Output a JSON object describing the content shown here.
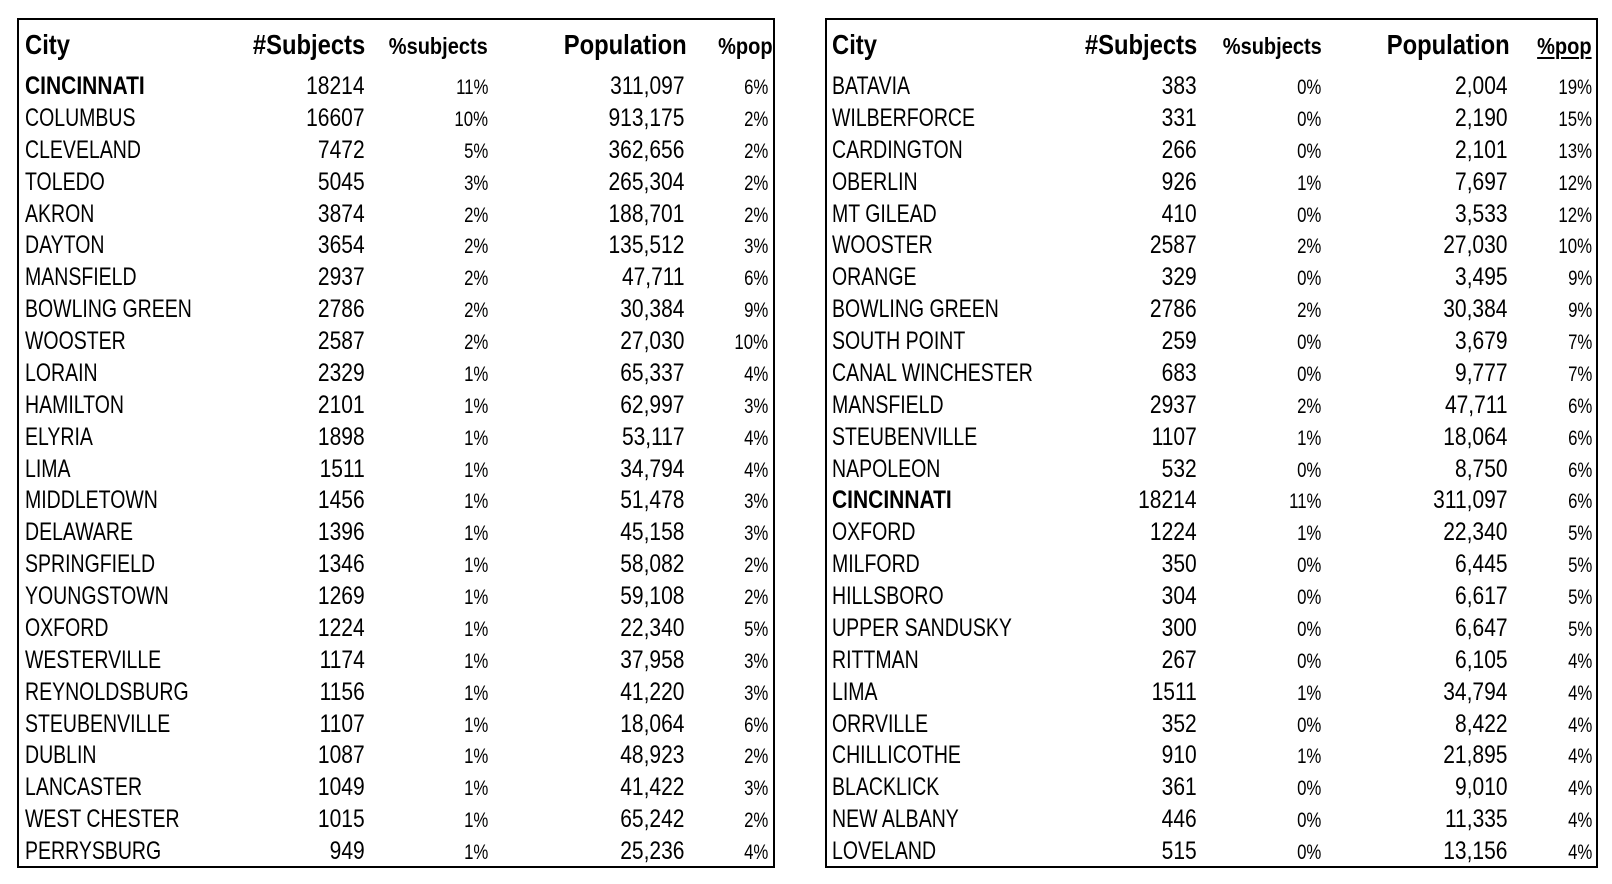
{
  "page": {
    "background": "#ffffff",
    "text_color": "#000000",
    "table_border_color": "#000000"
  },
  "tables": [
    {
      "name": "cities-by-subjects",
      "headers": {
        "city": "City",
        "subjects": "#Subjects",
        "pct_subjects": "%subjects",
        "population": "Population",
        "pct_pop": "%pop",
        "pct_pop_underlined": false
      },
      "rows": [
        {
          "city": "CINCINNATI",
          "subjects": "18214",
          "pct_subjects": "11%",
          "population": "311,097",
          "pct_pop": "6%",
          "bold": true
        },
        {
          "city": "COLUMBUS",
          "subjects": "16607",
          "pct_subjects": "10%",
          "population": "913,175",
          "pct_pop": "2%",
          "bold": false
        },
        {
          "city": "CLEVELAND",
          "subjects": "7472",
          "pct_subjects": "5%",
          "population": "362,656",
          "pct_pop": "2%",
          "bold": false
        },
        {
          "city": "TOLEDO",
          "subjects": "5045",
          "pct_subjects": "3%",
          "population": "265,304",
          "pct_pop": "2%",
          "bold": false
        },
        {
          "city": "AKRON",
          "subjects": "3874",
          "pct_subjects": "2%",
          "population": "188,701",
          "pct_pop": "2%",
          "bold": false
        },
        {
          "city": "DAYTON",
          "subjects": "3654",
          "pct_subjects": "2%",
          "population": "135,512",
          "pct_pop": "3%",
          "bold": false
        },
        {
          "city": "MANSFIELD",
          "subjects": "2937",
          "pct_subjects": "2%",
          "population": "47,711",
          "pct_pop": "6%",
          "bold": false
        },
        {
          "city": "BOWLING GREEN",
          "subjects": "2786",
          "pct_subjects": "2%",
          "population": "30,384",
          "pct_pop": "9%",
          "bold": false
        },
        {
          "city": "WOOSTER",
          "subjects": "2587",
          "pct_subjects": "2%",
          "population": "27,030",
          "pct_pop": "10%",
          "bold": false
        },
        {
          "city": "LORAIN",
          "subjects": "2329",
          "pct_subjects": "1%",
          "population": "65,337",
          "pct_pop": "4%",
          "bold": false
        },
        {
          "city": "HAMILTON",
          "subjects": "2101",
          "pct_subjects": "1%",
          "population": "62,997",
          "pct_pop": "3%",
          "bold": false
        },
        {
          "city": "ELYRIA",
          "subjects": "1898",
          "pct_subjects": "1%",
          "population": "53,117",
          "pct_pop": "4%",
          "bold": false
        },
        {
          "city": "LIMA",
          "subjects": "1511",
          "pct_subjects": "1%",
          "population": "34,794",
          "pct_pop": "4%",
          "bold": false
        },
        {
          "city": "MIDDLETOWN",
          "subjects": "1456",
          "pct_subjects": "1%",
          "population": "51,478",
          "pct_pop": "3%",
          "bold": false
        },
        {
          "city": "DELAWARE",
          "subjects": "1396",
          "pct_subjects": "1%",
          "population": "45,158",
          "pct_pop": "3%",
          "bold": false
        },
        {
          "city": "SPRINGFIELD",
          "subjects": "1346",
          "pct_subjects": "1%",
          "population": "58,082",
          "pct_pop": "2%",
          "bold": false
        },
        {
          "city": "YOUNGSTOWN",
          "subjects": "1269",
          "pct_subjects": "1%",
          "population": "59,108",
          "pct_pop": "2%",
          "bold": false
        },
        {
          "city": "OXFORD",
          "subjects": "1224",
          "pct_subjects": "1%",
          "population": "22,340",
          "pct_pop": "5%",
          "bold": false
        },
        {
          "city": "WESTERVILLE",
          "subjects": "1174",
          "pct_subjects": "1%",
          "population": "37,958",
          "pct_pop": "3%",
          "bold": false
        },
        {
          "city": "REYNOLDSBURG",
          "subjects": "1156",
          "pct_subjects": "1%",
          "population": "41,220",
          "pct_pop": "3%",
          "bold": false
        },
        {
          "city": "STEUBENVILLE",
          "subjects": "1107",
          "pct_subjects": "1%",
          "population": "18,064",
          "pct_pop": "6%",
          "bold": false
        },
        {
          "city": "DUBLIN",
          "subjects": "1087",
          "pct_subjects": "1%",
          "population": "48,923",
          "pct_pop": "2%",
          "bold": false
        },
        {
          "city": "LANCASTER",
          "subjects": "1049",
          "pct_subjects": "1%",
          "population": "41,422",
          "pct_pop": "3%",
          "bold": false
        },
        {
          "city": "WEST CHESTER",
          "subjects": "1015",
          "pct_subjects": "1%",
          "population": "65,242",
          "pct_pop": "2%",
          "bold": false
        },
        {
          "city": "PERRYSBURG",
          "subjects": "949",
          "pct_subjects": "1%",
          "population": "25,236",
          "pct_pop": "4%",
          "bold": false
        }
      ]
    },
    {
      "name": "cities-by-pct-pop",
      "headers": {
        "city": "City",
        "subjects": "#Subjects",
        "pct_subjects": "%subjects",
        "population": "Population",
        "pct_pop": "%pop",
        "pct_pop_underlined": true
      },
      "rows": [
        {
          "city": "BATAVIA",
          "subjects": "383",
          "pct_subjects": "0%",
          "population": "2,004",
          "pct_pop": "19%",
          "bold": false
        },
        {
          "city": "WILBERFORCE",
          "subjects": "331",
          "pct_subjects": "0%",
          "population": "2,190",
          "pct_pop": "15%",
          "bold": false
        },
        {
          "city": "CARDINGTON",
          "subjects": "266",
          "pct_subjects": "0%",
          "population": "2,101",
          "pct_pop": "13%",
          "bold": false
        },
        {
          "city": "OBERLIN",
          "subjects": "926",
          "pct_subjects": "1%",
          "population": "7,697",
          "pct_pop": "12%",
          "bold": false
        },
        {
          "city": "MT GILEAD",
          "subjects": "410",
          "pct_subjects": "0%",
          "population": "3,533",
          "pct_pop": "12%",
          "bold": false
        },
        {
          "city": "WOOSTER",
          "subjects": "2587",
          "pct_subjects": "2%",
          "population": "27,030",
          "pct_pop": "10%",
          "bold": false
        },
        {
          "city": "ORANGE",
          "subjects": "329",
          "pct_subjects": "0%",
          "population": "3,495",
          "pct_pop": "9%",
          "bold": false
        },
        {
          "city": "BOWLING GREEN",
          "subjects": "2786",
          "pct_subjects": "2%",
          "population": "30,384",
          "pct_pop": "9%",
          "bold": false
        },
        {
          "city": "SOUTH POINT",
          "subjects": "259",
          "pct_subjects": "0%",
          "population": "3,679",
          "pct_pop": "7%",
          "bold": false
        },
        {
          "city": "CANAL WINCHESTER",
          "subjects": "683",
          "pct_subjects": "0%",
          "population": "9,777",
          "pct_pop": "7%",
          "bold": false
        },
        {
          "city": "MANSFIELD",
          "subjects": "2937",
          "pct_subjects": "2%",
          "population": "47,711",
          "pct_pop": "6%",
          "bold": false
        },
        {
          "city": "STEUBENVILLE",
          "subjects": "1107",
          "pct_subjects": "1%",
          "population": "18,064",
          "pct_pop": "6%",
          "bold": false
        },
        {
          "city": "NAPOLEON",
          "subjects": "532",
          "pct_subjects": "0%",
          "population": "8,750",
          "pct_pop": "6%",
          "bold": false
        },
        {
          "city": "CINCINNATI",
          "subjects": "18214",
          "pct_subjects": "11%",
          "population": "311,097",
          "pct_pop": "6%",
          "bold": true
        },
        {
          "city": "OXFORD",
          "subjects": "1224",
          "pct_subjects": "1%",
          "population": "22,340",
          "pct_pop": "5%",
          "bold": false
        },
        {
          "city": "MILFORD",
          "subjects": "350",
          "pct_subjects": "0%",
          "population": "6,445",
          "pct_pop": "5%",
          "bold": false
        },
        {
          "city": "HILLSBORO",
          "subjects": "304",
          "pct_subjects": "0%",
          "population": "6,617",
          "pct_pop": "5%",
          "bold": false
        },
        {
          "city": "UPPER SANDUSKY",
          "subjects": "300",
          "pct_subjects": "0%",
          "population": "6,647",
          "pct_pop": "5%",
          "bold": false
        },
        {
          "city": "RITTMAN",
          "subjects": "267",
          "pct_subjects": "0%",
          "population": "6,105",
          "pct_pop": "4%",
          "bold": false
        },
        {
          "city": "LIMA",
          "subjects": "1511",
          "pct_subjects": "1%",
          "population": "34,794",
          "pct_pop": "4%",
          "bold": false
        },
        {
          "city": "ORRVILLE",
          "subjects": "352",
          "pct_subjects": "0%",
          "population": "8,422",
          "pct_pop": "4%",
          "bold": false
        },
        {
          "city": "CHILLICOTHE",
          "subjects": "910",
          "pct_subjects": "1%",
          "population": "21,895",
          "pct_pop": "4%",
          "bold": false
        },
        {
          "city": "BLACKLICK",
          "subjects": "361",
          "pct_subjects": "0%",
          "population": "9,010",
          "pct_pop": "4%",
          "bold": false
        },
        {
          "city": "NEW ALBANY",
          "subjects": "446",
          "pct_subjects": "0%",
          "population": "11,335",
          "pct_pop": "4%",
          "bold": false
        },
        {
          "city": "LOVELAND",
          "subjects": "515",
          "pct_subjects": "0%",
          "population": "13,156",
          "pct_pop": "4%",
          "bold": false
        }
      ]
    }
  ]
}
